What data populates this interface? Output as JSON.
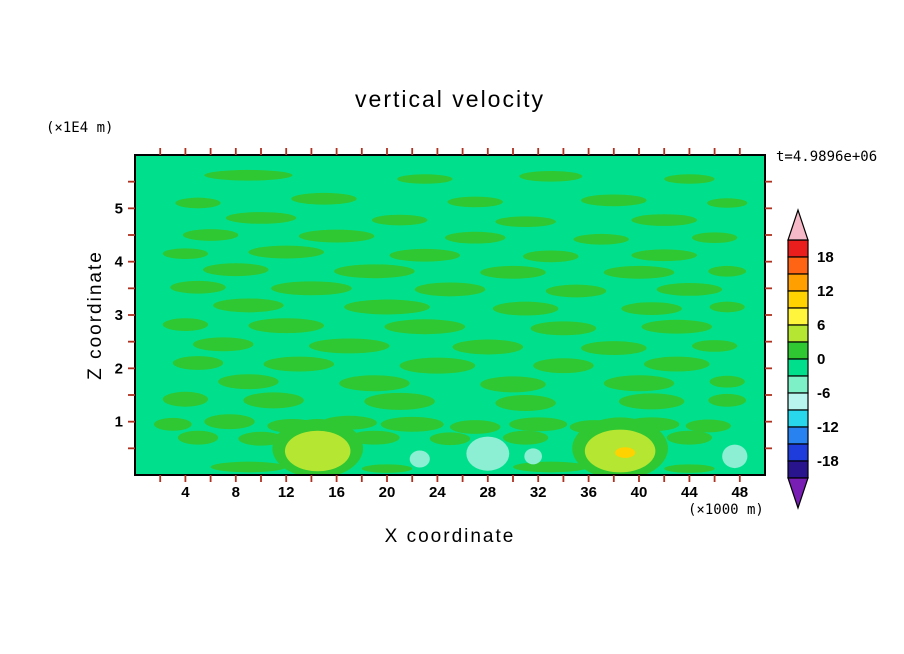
{
  "title": "vertical velocity",
  "timestamp": "t=4.9896e+06",
  "axes": {
    "x_label": "X coordinate",
    "x_unit": "(×1000 m)",
    "y_label": "Z coordinate",
    "y_unit": "(×1E4 m)"
  },
  "chart_data": {
    "type": "heatmap",
    "title": "vertical velocity",
    "subtitle": "t=4.9896e+06",
    "xlabel": "X coordinate (×1000 m)",
    "ylabel": "Z coordinate (×1E4 m)",
    "x_range": [
      0,
      50
    ],
    "y_range": [
      0,
      6
    ],
    "x_tick_labels": [
      "4",
      "8",
      "12",
      "16",
      "20",
      "24",
      "28",
      "32",
      "36",
      "40",
      "44",
      "48"
    ],
    "x_minor_tick_step": 2,
    "y_tick_labels": [
      "1",
      "2",
      "3",
      "4",
      "5"
    ],
    "y_minor_tick_step": 0.5,
    "grid": false,
    "frame_color": "#000000",
    "tick_color": "#b03020",
    "legend_position": "right",
    "colorbar": {
      "labels": [
        "18",
        "12",
        "6",
        "0",
        "-6",
        "-12",
        "-18"
      ],
      "band_levels": [
        21,
        18,
        15,
        12,
        9,
        6,
        3,
        0,
        -3,
        -6,
        -9,
        -12,
        -15,
        -18,
        -21
      ],
      "band_colors": [
        "#eb1e1e",
        "#ff6414",
        "#ffa000",
        "#ffd200",
        "#fff53c",
        "#b4e632",
        "#2fc832",
        "#00e08c",
        "#7df0c8",
        "#b9f5ef",
        "#28d7eb",
        "#2882f0",
        "#1e3cdc",
        "#28148c"
      ],
      "over_color": "#f5b9c8",
      "under_color": "#781eb4"
    },
    "field": {
      "description": "mostly near-zero vertical velocity: mint background (-3..0 band) with streaky 0..3 bands; two 3..6 updraft blobs near surface at x=14.5 and x=38.5 (small 9..12 core at x=38.9); weak -6..-3 downdraft patches near surface around x=28",
      "background_color": "#00e08c",
      "streak_color": "#2fc832",
      "streaks": [
        [
          9,
          5.62,
          3.5,
          0.1
        ],
        [
          23,
          5.55,
          2.2,
          0.09
        ],
        [
          33,
          5.6,
          2.5,
          0.1
        ],
        [
          44,
          5.55,
          2,
          0.09
        ],
        [
          5,
          5.1,
          1.8,
          0.1
        ],
        [
          15,
          5.18,
          2.6,
          0.11
        ],
        [
          27,
          5.12,
          2.2,
          0.1
        ],
        [
          38,
          5.15,
          2.6,
          0.11
        ],
        [
          47,
          5.1,
          1.6,
          0.09
        ],
        [
          10,
          4.82,
          2.8,
          0.11
        ],
        [
          21,
          4.78,
          2.2,
          0.1
        ],
        [
          31,
          4.75,
          2.4,
          0.1
        ],
        [
          42,
          4.78,
          2.6,
          0.11
        ],
        [
          6,
          4.5,
          2.2,
          0.11
        ],
        [
          16,
          4.48,
          3,
          0.12
        ],
        [
          27,
          4.45,
          2.4,
          0.11
        ],
        [
          37,
          4.42,
          2.2,
          0.1
        ],
        [
          46,
          4.45,
          1.8,
          0.1
        ],
        [
          4,
          4.15,
          1.8,
          0.1
        ],
        [
          12,
          4.18,
          3,
          0.12
        ],
        [
          23,
          4.12,
          2.8,
          0.12
        ],
        [
          33,
          4.1,
          2.2,
          0.11
        ],
        [
          42,
          4.12,
          2.6,
          0.11
        ],
        [
          8,
          3.85,
          2.6,
          0.12
        ],
        [
          19,
          3.82,
          3.2,
          0.13
        ],
        [
          30,
          3.8,
          2.6,
          0.12
        ],
        [
          40,
          3.8,
          2.8,
          0.12
        ],
        [
          47,
          3.82,
          1.5,
          0.1
        ],
        [
          5,
          3.52,
          2.2,
          0.12
        ],
        [
          14,
          3.5,
          3.2,
          0.13
        ],
        [
          25,
          3.48,
          2.8,
          0.13
        ],
        [
          35,
          3.45,
          2.4,
          0.12
        ],
        [
          44,
          3.48,
          2.6,
          0.12
        ],
        [
          9,
          3.18,
          2.8,
          0.13
        ],
        [
          20,
          3.15,
          3.4,
          0.14
        ],
        [
          31,
          3.12,
          2.6,
          0.13
        ],
        [
          41,
          3.12,
          2.4,
          0.12
        ],
        [
          47,
          3.15,
          1.4,
          0.1
        ],
        [
          4,
          2.82,
          1.8,
          0.12
        ],
        [
          12,
          2.8,
          3,
          0.14
        ],
        [
          23,
          2.78,
          3.2,
          0.14
        ],
        [
          34,
          2.75,
          2.6,
          0.13
        ],
        [
          43,
          2.78,
          2.8,
          0.13
        ],
        [
          7,
          2.45,
          2.4,
          0.13
        ],
        [
          17,
          2.42,
          3.2,
          0.14
        ],
        [
          28,
          2.4,
          2.8,
          0.14
        ],
        [
          38,
          2.38,
          2.6,
          0.13
        ],
        [
          46,
          2.42,
          1.8,
          0.11
        ],
        [
          5,
          2.1,
          2,
          0.13
        ],
        [
          13,
          2.08,
          2.8,
          0.14
        ],
        [
          24,
          2.05,
          3,
          0.15
        ],
        [
          34,
          2.05,
          2.4,
          0.14
        ],
        [
          43,
          2.08,
          2.6,
          0.14
        ],
        [
          9,
          1.75,
          2.4,
          0.14
        ],
        [
          19,
          1.72,
          2.8,
          0.15
        ],
        [
          30,
          1.7,
          2.6,
          0.15
        ],
        [
          40,
          1.72,
          2.8,
          0.15
        ],
        [
          47,
          1.75,
          1.4,
          0.11
        ],
        [
          4,
          1.42,
          1.8,
          0.14
        ],
        [
          11,
          1.4,
          2.4,
          0.15
        ],
        [
          21,
          1.38,
          2.8,
          0.16
        ],
        [
          31,
          1.35,
          2.4,
          0.15
        ],
        [
          41,
          1.38,
          2.6,
          0.15
        ],
        [
          47,
          1.4,
          1.5,
          0.12
        ],
        [
          3,
          0.95,
          1.5,
          0.12
        ],
        [
          7.5,
          1,
          2,
          0.14
        ],
        [
          12.5,
          0.92,
          2,
          0.13
        ],
        [
          17,
          0.98,
          2.2,
          0.13
        ],
        [
          22,
          0.95,
          2.5,
          0.14
        ],
        [
          27,
          0.9,
          2,
          0.13
        ],
        [
          32,
          0.95,
          2.3,
          0.13
        ],
        [
          36.5,
          0.9,
          2,
          0.13
        ],
        [
          41,
          0.95,
          2.2,
          0.13
        ],
        [
          45.5,
          0.92,
          1.8,
          0.12
        ],
        [
          5,
          0.7,
          1.6,
          0.13
        ],
        [
          10,
          0.68,
          1.8,
          0.13
        ],
        [
          19,
          0.7,
          2,
          0.13
        ],
        [
          25,
          0.68,
          1.6,
          0.12
        ],
        [
          31,
          0.7,
          1.8,
          0.13
        ],
        [
          44,
          0.7,
          1.8,
          0.13
        ],
        [
          9,
          0.15,
          3,
          0.1
        ],
        [
          20,
          0.12,
          2,
          0.08
        ],
        [
          33,
          0.15,
          3,
          0.1
        ],
        [
          44,
          0.12,
          2,
          0.08
        ]
      ],
      "features": [
        {
          "color": "#2fc832",
          "e": [
            14.5,
            0.5,
            3.6,
            0.55
          ]
        },
        {
          "color": "#b4e632",
          "e": [
            14.5,
            0.45,
            2.6,
            0.38
          ]
        },
        {
          "color": "#2fc832",
          "e": [
            38.5,
            0.5,
            3.8,
            0.58
          ]
        },
        {
          "color": "#b4e632",
          "e": [
            38.5,
            0.45,
            2.8,
            0.4
          ]
        },
        {
          "color": "#ffd200",
          "e": [
            38.9,
            0.42,
            0.8,
            0.1
          ]
        },
        {
          "color": "#8ceed2",
          "e": [
            28,
            0.4,
            1.7,
            0.32
          ]
        },
        {
          "color": "#8ceed2",
          "e": [
            22.6,
            0.3,
            0.8,
            0.16
          ]
        },
        {
          "color": "#8ceed2",
          "e": [
            31.6,
            0.35,
            0.7,
            0.15
          ]
        },
        {
          "color": "#8ceed2",
          "e": [
            47.6,
            0.35,
            1,
            0.22
          ]
        }
      ]
    }
  }
}
